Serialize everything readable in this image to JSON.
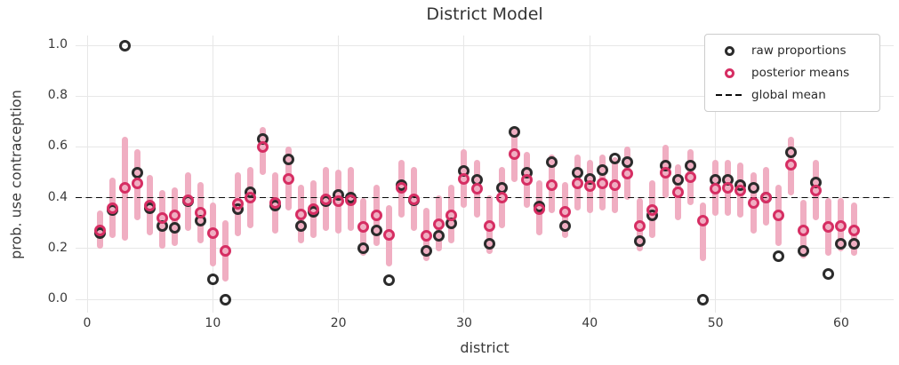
{
  "title": "District Model",
  "axes": {
    "xlabel": "district",
    "ylabel": "prob. use contraception",
    "xtick_labels": [
      "0",
      "10",
      "20",
      "30",
      "40",
      "50",
      "60"
    ],
    "ytick_labels": [
      "0.0",
      "0.2",
      "0.4",
      "0.6",
      "0.8",
      "1.0"
    ]
  },
  "legend": {
    "items": [
      {
        "label": "raw proportions",
        "icon": "black-open-circle"
      },
      {
        "label": "posterior means",
        "icon": "pink-open-circle"
      },
      {
        "label": "global mean",
        "icon": "black-dashed-line"
      }
    ]
  },
  "colors": {
    "raw_marker": "#2b2b2b",
    "posterior_marker": "#d62e63",
    "interval_bar": "#f0aec2",
    "gridline": "#e7e7e7",
    "global_mean_line": "#0a0a0a",
    "title_text": "#333333",
    "tick_text": "#3a3a3a",
    "legend_border": "#cccccc"
  },
  "chart_data": {
    "type": "scatter",
    "title": "District Model",
    "xlabel": "district",
    "ylabel": "prob. use contraception",
    "grid": true,
    "legend_position": "upper right",
    "xlim": [
      -1,
      64
    ],
    "ylim": [
      -0.05,
      1.05
    ],
    "xticks": [
      0,
      10,
      20,
      30,
      40,
      50,
      60
    ],
    "yticks": [
      0.0,
      0.2,
      0.4,
      0.6,
      0.8,
      1.0
    ],
    "global_mean": 0.4,
    "x": [
      1,
      2,
      3,
      4,
      5,
      6,
      7,
      8,
      9,
      10,
      11,
      12,
      13,
      14,
      15,
      16,
      17,
      18,
      19,
      20,
      21,
      22,
      23,
      24,
      25,
      26,
      27,
      28,
      29,
      30,
      31,
      32,
      33,
      34,
      35,
      36,
      37,
      38,
      39,
      40,
      41,
      42,
      43,
      44,
      45,
      46,
      47,
      48,
      49,
      50,
      51,
      52,
      53,
      54,
      55,
      56,
      57,
      58,
      59,
      60,
      61
    ],
    "series": [
      {
        "name": "raw proportions",
        "marker": "open-circle",
        "color": "#2b2b2b",
        "values": [
          0.26,
          0.35,
          1.0,
          0.5,
          0.36,
          0.29,
          0.28,
          0.385,
          0.31,
          0.08,
          0.0,
          0.355,
          0.42,
          0.63,
          0.37,
          0.55,
          0.29,
          0.345,
          0.385,
          0.41,
          0.4,
          0.2,
          0.27,
          0.075,
          0.45,
          0.39,
          0.19,
          0.25,
          0.3,
          0.505,
          0.47,
          0.22,
          0.44,
          0.66,
          0.5,
          0.365,
          0.54,
          0.29,
          0.5,
          0.475,
          0.51,
          0.555,
          0.54,
          0.23,
          0.33,
          0.525,
          0.47,
          0.525,
          0.0,
          0.47,
          0.47,
          0.45,
          0.44,
          0.4,
          0.17,
          0.58,
          0.19,
          0.46,
          0.1,
          0.22,
          0.22
        ]
      },
      {
        "name": "posterior means",
        "marker": "open-circle",
        "color": "#d62e63",
        "values": [
          0.27,
          0.36,
          0.44,
          0.455,
          0.37,
          0.32,
          0.33,
          0.39,
          0.34,
          0.26,
          0.19,
          0.375,
          0.4,
          0.6,
          0.38,
          0.475,
          0.335,
          0.355,
          0.395,
          0.385,
          0.39,
          0.285,
          0.33,
          0.255,
          0.44,
          0.395,
          0.25,
          0.295,
          0.33,
          0.475,
          0.435,
          0.29,
          0.4,
          0.57,
          0.47,
          0.355,
          0.45,
          0.345,
          0.455,
          0.445,
          0.455,
          0.45,
          0.495,
          0.29,
          0.35,
          0.5,
          0.42,
          0.48,
          0.31,
          0.435,
          0.44,
          0.43,
          0.38,
          0.4,
          0.33,
          0.53,
          0.27,
          0.43,
          0.285,
          0.29,
          0.27
        ]
      },
      {
        "name": "posterior intervals",
        "marker": "vertical-bar",
        "color": "#f0aec2",
        "low": [
          0.2,
          0.24,
          0.23,
          0.31,
          0.25,
          0.2,
          0.21,
          0.27,
          0.22,
          0.13,
          0.07,
          0.25,
          0.28,
          0.49,
          0.26,
          0.35,
          0.22,
          0.24,
          0.27,
          0.26,
          0.27,
          0.17,
          0.21,
          0.13,
          0.32,
          0.27,
          0.15,
          0.19,
          0.22,
          0.36,
          0.32,
          0.18,
          0.28,
          0.46,
          0.36,
          0.25,
          0.34,
          0.24,
          0.35,
          0.34,
          0.35,
          0.34,
          0.39,
          0.19,
          0.24,
          0.4,
          0.31,
          0.37,
          0.15,
          0.33,
          0.33,
          0.32,
          0.26,
          0.29,
          0.21,
          0.41,
          0.16,
          0.31,
          0.17,
          0.19,
          0.17
        ],
        "high": [
          0.35,
          0.48,
          0.64,
          0.59,
          0.49,
          0.43,
          0.44,
          0.5,
          0.46,
          0.38,
          0.31,
          0.5,
          0.52,
          0.68,
          0.5,
          0.6,
          0.45,
          0.47,
          0.52,
          0.51,
          0.52,
          0.4,
          0.45,
          0.37,
          0.55,
          0.52,
          0.36,
          0.41,
          0.45,
          0.59,
          0.55,
          0.41,
          0.52,
          0.68,
          0.58,
          0.47,
          0.57,
          0.46,
          0.57,
          0.55,
          0.57,
          0.56,
          0.6,
          0.4,
          0.47,
          0.61,
          0.53,
          0.59,
          0.38,
          0.55,
          0.55,
          0.54,
          0.5,
          0.52,
          0.45,
          0.64,
          0.39,
          0.55,
          0.4,
          0.4,
          0.38
        ]
      }
    ]
  }
}
